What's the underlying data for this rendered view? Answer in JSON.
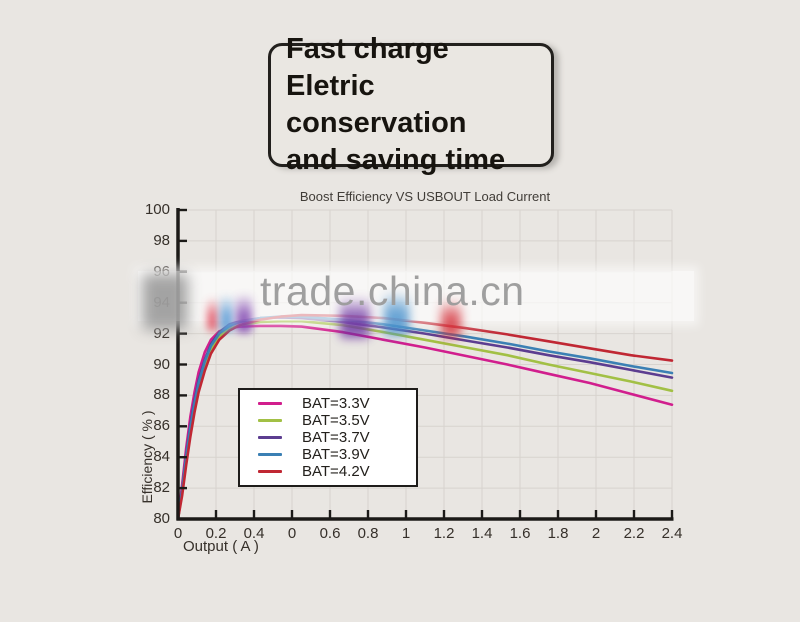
{
  "promo": {
    "lines": [
      "Fast charge",
      "Eletric conservation",
      "and saving time"
    ]
  },
  "watermark": {
    "text": "trade.china.cn"
  },
  "chart_data": {
    "type": "line",
    "title": "Boost Efficiency VS USBOUT Load Current",
    "xlabel": "Output ( A )",
    "ylabel": "Efficiency ( % )",
    "xlim": [
      0,
      2.4
    ],
    "ylim": [
      80,
      100
    ],
    "grid": true,
    "legend_position": "lower-left-inside",
    "x_tick_labels": [
      "0",
      "0.2",
      "0.4",
      "0",
      "0.6",
      "0.8",
      "1",
      "1.2",
      "1.4",
      "1.6",
      "1.8",
      "2",
      "2.2",
      "2.4"
    ],
    "y_ticks": [
      80,
      82,
      84,
      86,
      88,
      90,
      92,
      94,
      96,
      98,
      100
    ],
    "x": [
      0,
      0.02,
      0.04,
      0.06,
      0.08,
      0.1,
      0.13,
      0.16,
      0.2,
      0.25,
      0.3,
      0.4,
      0.5,
      0.6,
      0.8,
      1.0,
      1.2,
      1.4,
      1.6,
      1.8,
      2.0,
      2.2,
      2.4
    ],
    "series": [
      {
        "name": "BAT=3.3V",
        "color": "#d11e8d",
        "values": [
          80,
          82.2,
          84.6,
          86.6,
          88.2,
          89.5,
          90.8,
          91.6,
          92.15,
          92.35,
          92.45,
          92.5,
          92.5,
          92.45,
          92.1,
          91.6,
          91.1,
          90.55,
          90.0,
          89.4,
          88.8,
          88.1,
          87.4
        ]
      },
      {
        "name": "BAT=3.5V",
        "color": "#a2c045",
        "values": [
          80,
          81.7,
          83.8,
          85.7,
          87.3,
          88.6,
          90.0,
          91.0,
          91.8,
          92.3,
          92.55,
          92.75,
          92.8,
          92.8,
          92.55,
          92.1,
          91.6,
          91.1,
          90.6,
          90.0,
          89.45,
          88.9,
          88.3
        ]
      },
      {
        "name": "BAT=3.7V",
        "color": "#5c3d90",
        "values": [
          80,
          81.9,
          84.2,
          86.1,
          87.7,
          89.0,
          90.3,
          91.3,
          92.1,
          92.6,
          92.8,
          93.0,
          93.05,
          93.0,
          92.75,
          92.4,
          92.0,
          91.55,
          91.1,
          90.6,
          90.15,
          89.65,
          89.15
        ]
      },
      {
        "name": "BAT=3.9V",
        "color": "#3b80b4",
        "values": [
          80,
          81.8,
          84.0,
          85.9,
          87.5,
          88.8,
          90.2,
          91.2,
          92.0,
          92.5,
          92.75,
          93.0,
          93.1,
          93.1,
          92.9,
          92.6,
          92.2,
          91.8,
          91.35,
          90.85,
          90.4,
          89.9,
          89.45
        ]
      },
      {
        "name": "BAT=4.2V",
        "color": "#c02733",
        "values": [
          80,
          81.5,
          83.5,
          85.3,
          86.9,
          88.2,
          89.6,
          90.7,
          91.6,
          92.2,
          92.55,
          92.9,
          93.1,
          93.2,
          93.15,
          93.0,
          92.7,
          92.35,
          91.95,
          91.5,
          91.05,
          90.6,
          90.25
        ]
      }
    ]
  }
}
